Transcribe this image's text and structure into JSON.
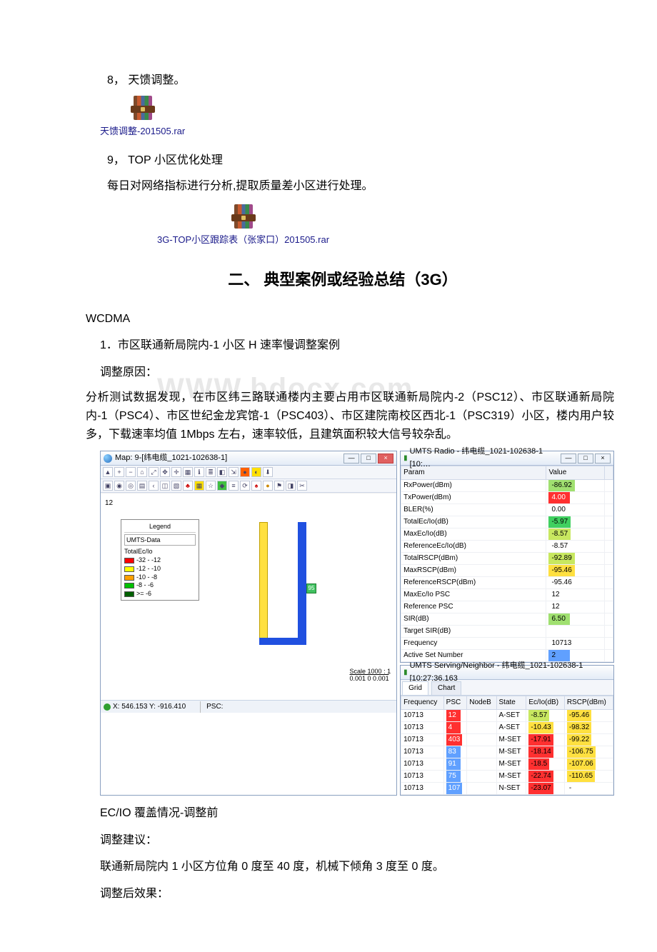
{
  "items": {
    "i8_num": "8，",
    "i8_text": "天馈调整。",
    "i9_num": "9，",
    "i9_text": "TOP 小区优化处理"
  },
  "rar1": "天馈调整-201505.rar",
  "body_daily": "每日对网络指标进行分析,提取质量差小区进行处理。",
  "rar2": "3G-TOP小区跟踪表（张家口）201505.rar",
  "section_title": "二、 典型案例或经验总结（3G）",
  "wcdma": "WCDMA",
  "case1": "1．市区联通新局院内-1 小区 H 速率慢调整案例",
  "reason_h": "调整原因：",
  "reason_body": "分析测试数据发现，在市区纬三路联通楼内主要占用市区联通新局院内-2（PSC12）、市区联通新局院内-1（PSC4）、市区世纪金龙宾馆-1（PSC403）、市区建院南校区西北-1（PSC319）小区，楼内用户较多，下载速率均值 1Mbps 左右，速率较低，且建筑面积较大信号较杂乱。",
  "watermark": "WWW.bdocx.com",
  "map": {
    "title": "Map: 9-[纬电缆_1021-102638-1]",
    "axis_label": "12",
    "marker": "95",
    "legend_title": "Legend",
    "legend_header": "UMTS-Data",
    "legend_param": "TotalEc/Io",
    "legend_rows": [
      {
        "color": "#ff0000",
        "label": "-32 - -12"
      },
      {
        "color": "#ffff00",
        "label": "-12 - -10"
      },
      {
        "color": "#ffa000",
        "label": "-10 - -8"
      },
      {
        "color": "#00c000",
        "label": "-8 - -6"
      },
      {
        "color": "#006000",
        "label": ">= -6"
      }
    ],
    "scale_l1": "Scale   1000 :  1",
    "scale_l2": "0.001  0      0.001",
    "status_xy": "X: 546.153  Y: -916.410",
    "status_psc_label": "PSC:"
  },
  "radio": {
    "title": "UMTS Radio - 纬电缆_1021-102638-1 [10:…",
    "headers": [
      "Param",
      "Value"
    ],
    "rows": [
      {
        "p": "RxPower(dBm)",
        "v": "-86.92",
        "bg": "#a0e070"
      },
      {
        "p": "TxPower(dBm)",
        "v": "4.00",
        "bg": "#ff3030",
        "fg": "#ffffff"
      },
      {
        "p": "BLER(%)",
        "v": "0.00",
        "bg": ""
      },
      {
        "p": "TotalEc/Io(dB)",
        "v": "-5.97",
        "bg": "#40d060"
      },
      {
        "p": "MaxEc/Io(dB)",
        "v": "-8.57",
        "bg": "#c8e860"
      },
      {
        "p": "ReferenceEc/Io(dB)",
        "v": "-8.57",
        "bg": ""
      },
      {
        "p": "TotalRSCP(dBm)",
        "v": "-92.89",
        "bg": "#c8e860"
      },
      {
        "p": "MaxRSCP(dBm)",
        "v": "-95.46",
        "bg": "#ffe040"
      },
      {
        "p": "ReferenceRSCP(dBm)",
        "v": "-95.46",
        "bg": ""
      },
      {
        "p": "MaxEc/Io PSC",
        "v": "12",
        "bg": ""
      },
      {
        "p": "Reference PSC",
        "v": "12",
        "bg": ""
      },
      {
        "p": "SIR(dB)",
        "v": "6.50",
        "bg": "#a0e070"
      },
      {
        "p": "Target SIR(dB)",
        "v": "",
        "bg": ""
      },
      {
        "p": "Frequency",
        "v": "10713",
        "bg": ""
      },
      {
        "p": "Active Set Number",
        "v": "2",
        "bg": "#60a0ff"
      }
    ]
  },
  "neighbor": {
    "title": "UMTS Serving/Neighbor - 纬电缆_1021-102638-1 [10:27:36.163",
    "tab_grid": "Grid",
    "tab_chart": "Chart",
    "headers": [
      "Frequency",
      "PSC",
      "NodeB",
      "State",
      "Ec/Io(dB)",
      "RSCP(dBm)"
    ],
    "rows": [
      {
        "f": "10713",
        "psc": "12",
        "psc_bg": "#ff3030",
        "nb": "",
        "st": "A-SET",
        "ec": "-8.57",
        "ec_bg": "#c8e860",
        "rs": "-95.46",
        "rs_bg": "#ffe040"
      },
      {
        "f": "10713",
        "psc": "4",
        "psc_bg": "#ff3030",
        "nb": "",
        "st": "A-SET",
        "ec": "-10.43",
        "ec_bg": "#ffe040",
        "rs": "-98.32",
        "rs_bg": "#ffe040"
      },
      {
        "f": "10713",
        "psc": "403",
        "psc_bg": "#ff3030",
        "nb": "",
        "st": "M-SET",
        "ec": "-17.91",
        "ec_bg": "#ff3030",
        "rs": "-99.22",
        "rs_bg": "#ffe040"
      },
      {
        "f": "10713",
        "psc": "83",
        "psc_bg": "#60a0ff",
        "nb": "",
        "st": "M-SET",
        "ec": "-18.14",
        "ec_bg": "#ff3030",
        "rs": "-106.75",
        "rs_bg": "#ffe040"
      },
      {
        "f": "10713",
        "psc": "91",
        "psc_bg": "#60a0ff",
        "nb": "",
        "st": "M-SET",
        "ec": "-18.5",
        "ec_bg": "#ff3030",
        "rs": "-107.06",
        "rs_bg": "#ffe040"
      },
      {
        "f": "10713",
        "psc": "75",
        "psc_bg": "#60a0ff",
        "nb": "",
        "st": "M-SET",
        "ec": "-22.74",
        "ec_bg": "#ff3030",
        "rs": "-110.65",
        "rs_bg": "#ffe040"
      },
      {
        "f": "10713",
        "psc": "107",
        "psc_bg": "#60a0ff",
        "nb": "",
        "st": "N-SET",
        "ec": "-23.07",
        "ec_bg": "#ff3030",
        "rs": "-",
        "rs_bg": ""
      }
    ]
  },
  "caption": "EC/IO 覆盖情况-调整前",
  "suggest_h": "调整建议：",
  "suggest_body": "联通新局院内 1 小区方位角 0 度至 40 度，机械下倾角 3 度至 0 度。",
  "after_h": "调整后效果："
}
